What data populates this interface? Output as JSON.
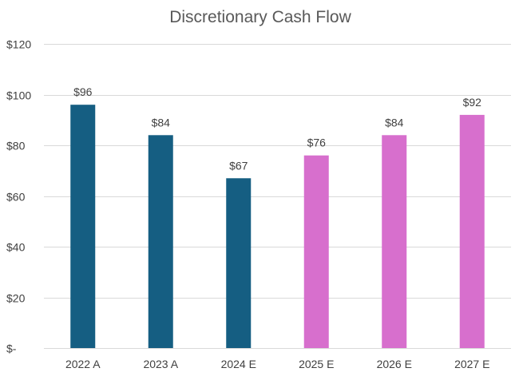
{
  "chart_data": {
    "type": "bar",
    "title": "Discretionary Cash Flow",
    "xlabel": "",
    "ylabel": "",
    "categories": [
      "2022 A",
      "2023 A",
      "2024 E",
      "2025 E",
      "2026 E",
      "2027 E"
    ],
    "values": [
      96,
      84,
      67,
      76,
      84,
      92
    ],
    "data_labels": [
      "$96",
      "$84",
      "$67",
      "$76",
      "$84",
      "$92"
    ],
    "bar_colors": [
      "#155e82",
      "#155e82",
      "#155e82",
      "#d76fcd",
      "#d76fcd",
      "#d76fcd"
    ],
    "ylim": [
      0,
      120
    ],
    "y_ticks": [
      0,
      20,
      40,
      60,
      80,
      100,
      120
    ],
    "y_tick_labels": [
      "$-",
      "$20",
      "$40",
      "$60",
      "$80",
      "$100",
      "$120"
    ],
    "grid": true,
    "legend": "none"
  }
}
